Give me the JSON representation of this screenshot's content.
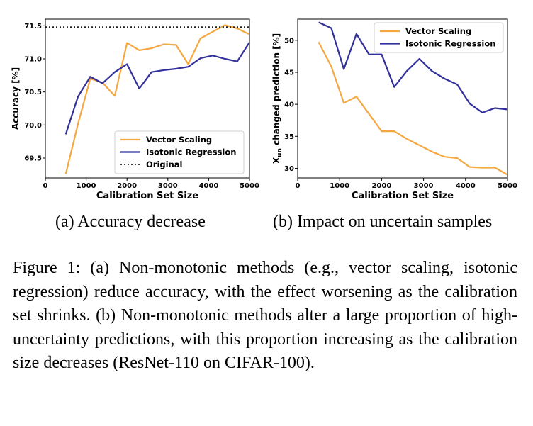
{
  "chart_data": [
    {
      "type": "line",
      "xlabel": "Calibration Set Size",
      "ylabel": "Accuracy [%]",
      "xlim": [
        0,
        5000
      ],
      "ylim": [
        69.2,
        71.6
      ],
      "xticks": [
        "0",
        "1000",
        "2000",
        "3000",
        "4000",
        "5000"
      ],
      "yticks": [
        "69.5",
        "70.0",
        "70.5",
        "71.0",
        "71.5"
      ],
      "grid": false,
      "legend_position": "bottom-right",
      "series": [
        {
          "name": "Vector Scaling",
          "color": "#f5a742",
          "style": "solid",
          "x": [
            500,
            800,
            1100,
            1400,
            1700,
            2000,
            2300,
            2600,
            2900,
            3200,
            3500,
            3800,
            4100,
            4400,
            4700,
            5000
          ],
          "y": [
            69.26,
            70.02,
            70.7,
            70.64,
            70.44,
            71.24,
            71.13,
            71.16,
            71.22,
            71.21,
            70.92,
            71.31,
            71.41,
            71.51,
            71.46,
            71.37
          ]
        },
        {
          "name": "Isotonic Regression",
          "color": "#32309a",
          "style": "solid",
          "x": [
            500,
            800,
            1100,
            1400,
            1700,
            2000,
            2300,
            2600,
            2900,
            3200,
            3500,
            3800,
            4100,
            4400,
            4700,
            5000
          ],
          "y": [
            69.86,
            70.43,
            70.73,
            70.63,
            70.8,
            70.92,
            70.55,
            70.8,
            70.83,
            70.85,
            70.88,
            71.01,
            71.05,
            71.0,
            70.96,
            71.25
          ]
        },
        {
          "name": "Original",
          "color": "#222222",
          "style": "dotted",
          "x": [
            0,
            5000
          ],
          "y": [
            71.48,
            71.48
          ]
        }
      ]
    },
    {
      "type": "line",
      "xlabel": "Calibration Set Size",
      "ylabel_main": "X",
      "ylabel_sub": "un",
      "ylabel_rest": " changed prediction [%]",
      "xlim": [
        0,
        5000
      ],
      "ylim": [
        28.5,
        53.3
      ],
      "xticks": [
        "0",
        "1000",
        "2000",
        "3000",
        "4000",
        "5000"
      ],
      "yticks": [
        "30",
        "35",
        "40",
        "45",
        "50"
      ],
      "grid": false,
      "legend_position": "top-right",
      "series": [
        {
          "name": "Vector Scaling",
          "color": "#f5a742",
          "style": "solid",
          "x": [
            500,
            800,
            1100,
            1400,
            1700,
            2000,
            2300,
            2600,
            2900,
            3200,
            3500,
            3800,
            4100,
            4400,
            4700,
            5000
          ],
          "y": [
            49.7,
            45.9,
            40.2,
            41.2,
            38.5,
            35.8,
            35.8,
            34.6,
            33.6,
            32.6,
            31.8,
            31.6,
            30.2,
            30.1,
            30.1,
            29.0
          ]
        },
        {
          "name": "Isotonic Regression",
          "color": "#32309a",
          "style": "solid",
          "x": [
            500,
            800,
            1100,
            1400,
            1700,
            2000,
            2300,
            2600,
            2900,
            3200,
            3500,
            3800,
            4100,
            4400,
            4700,
            5000
          ],
          "y": [
            52.8,
            51.9,
            45.5,
            51.0,
            47.8,
            47.8,
            42.7,
            45.2,
            47.1,
            45.2,
            44.0,
            43.1,
            40.1,
            38.7,
            39.4,
            39.2
          ]
        }
      ]
    }
  ],
  "captions": {
    "a": "(a) Accuracy decrease",
    "b": "(b) Impact on uncertain samples",
    "figure": "Figure 1: (a) Non-monotonic methods (e.g., vector scaling, isotonic regression) reduce accuracy, with the effect worsening as the calibration set shrinks. (b) Non-monotonic methods alter a large proportion of high-uncertainty predictions, with this proportion increasing as the calibration size decreases (ResNet-110 on CIFAR-100)."
  }
}
